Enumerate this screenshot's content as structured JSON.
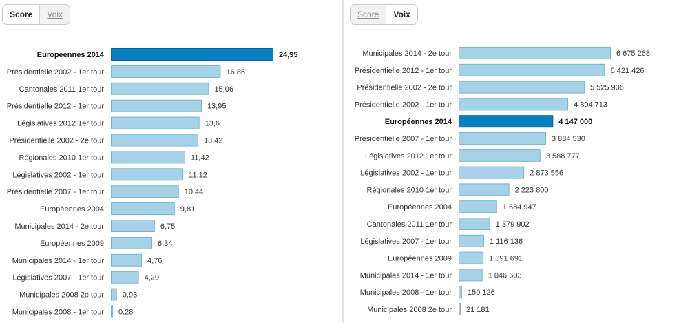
{
  "colors": {
    "bar": "#a6d2e7",
    "bar_border": "#79b4d1",
    "highlight_bar": "#0a7fc0",
    "highlight_border": "#07639a"
  },
  "left_panel": {
    "tabs": [
      {
        "label": "Score",
        "active": true
      },
      {
        "label": "Voix",
        "active": false
      }
    ]
  },
  "right_panel": {
    "tabs": [
      {
        "label": "Score",
        "active": false
      },
      {
        "label": "Voix",
        "active": true
      }
    ]
  },
  "chart_data": [
    {
      "type": "bar",
      "orientation": "horizontal",
      "highlight": "Européennes 2014",
      "categories": [
        "Européennes 2014",
        "Présidentielle 2002 - 1er tour",
        "Cantonales 2011 1er tour",
        "Présidentielle 2012 - 1er tour",
        "Législatives 2012 1er tour",
        "Présidentielle 2002 - 2e tour",
        "Régionales 2010 1er tour",
        "Législatives 2002 - 1er tour",
        "Présidentielle 2007 - 1er tour",
        "Européennes 2004",
        "Municipales 2014 - 2e tour",
        "Européennes 2009",
        "Municipales 2014 - 1er tour",
        "Législatives 2007 - 1er tour",
        "Municipales 2008 2e tour",
        "Municipales 2008 - 1er tour"
      ],
      "values": [
        24.95,
        16.86,
        15.06,
        13.95,
        13.6,
        13.42,
        11.42,
        11.12,
        10.44,
        9.81,
        6.75,
        6.34,
        4.76,
        4.29,
        0.93,
        0.28
      ],
      "value_labels": [
        "24,95",
        "16,86",
        "15,06",
        "13,95",
        "13,6",
        "13,42",
        "11,42",
        "11,12",
        "10,44",
        "9,81",
        "6,75",
        "6,34",
        "4,76",
        "4,29",
        "0,93",
        "0,28"
      ]
    },
    {
      "type": "bar",
      "orientation": "horizontal",
      "highlight": "Européennes 2014",
      "categories": [
        "Municipales 2014 - 2e tour",
        "Présidentielle 2012 - 1er tour",
        "Présidentielle 2002 - 2e tour",
        "Présidentielle 2002 - 1er tour",
        "Européennes 2014",
        "Présidentielle 2007 - 1er tour",
        "Législatives 2012 1er tour",
        "Législatives 2002 - 1er tour",
        "Régionales 2010 1er tour",
        "Européennes 2004",
        "Cantonales 2011 1er tour",
        "Législatives 2007 - 1er tour",
        "Européennes 2009",
        "Municipales 2014 - 1er tour",
        "Municipales 2008 - 1er tour",
        "Municipales 2008 2e tour"
      ],
      "values": [
        6675268,
        6421426,
        5525906,
        4804713,
        4147000,
        3834530,
        3588777,
        2873556,
        2223800,
        1684947,
        1379902,
        1116136,
        1091691,
        1046603,
        150126,
        21181
      ],
      "value_labels": [
        "6 675 268",
        "6 421 426",
        "5 525 906",
        "4 804 713",
        "4 147 000",
        "3 834 530",
        "3 588 777",
        "2 873 556",
        "2 223 800",
        "1 684 947",
        "1 379 902",
        "1 116 136",
        "1 091 691",
        "1 046 603",
        "150 126",
        "21 181"
      ]
    }
  ]
}
